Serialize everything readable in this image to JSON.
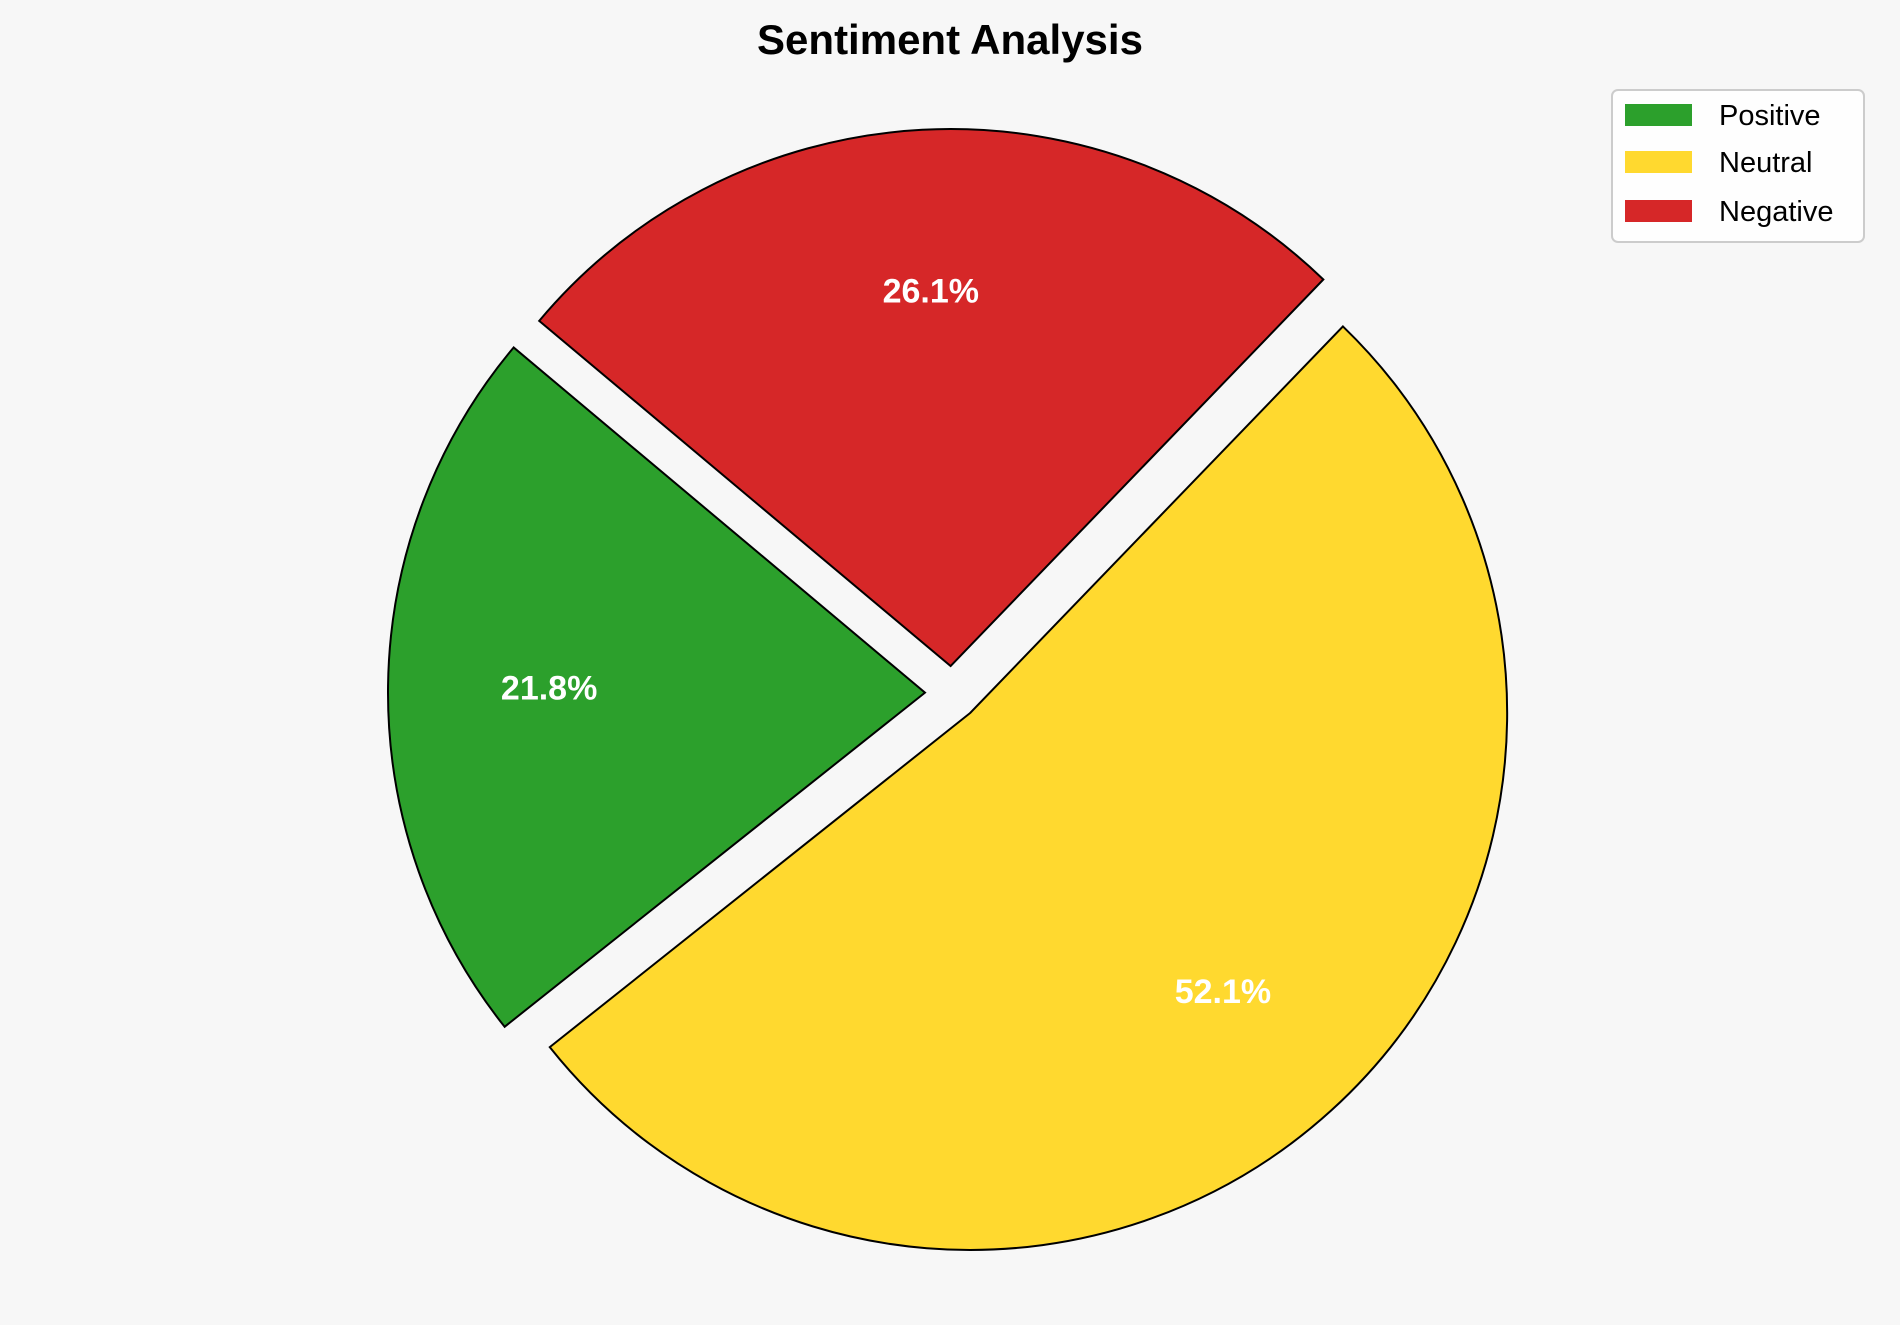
{
  "chart_data": {
    "type": "pie",
    "title": "Sentiment Analysis",
    "categories": [
      "Positive",
      "Neutral",
      "Negative"
    ],
    "values": [
      21.8,
      52.1,
      26.1
    ],
    "labels": [
      "21.8%",
      "52.1%",
      "26.1%"
    ],
    "colors": [
      "#2ca02c",
      "#ffd92f",
      "#d62728"
    ],
    "start_angle": 140,
    "direction": "counterclockwise",
    "exploded": true,
    "legend_position": "top-right",
    "background": "#f7f7f7"
  }
}
